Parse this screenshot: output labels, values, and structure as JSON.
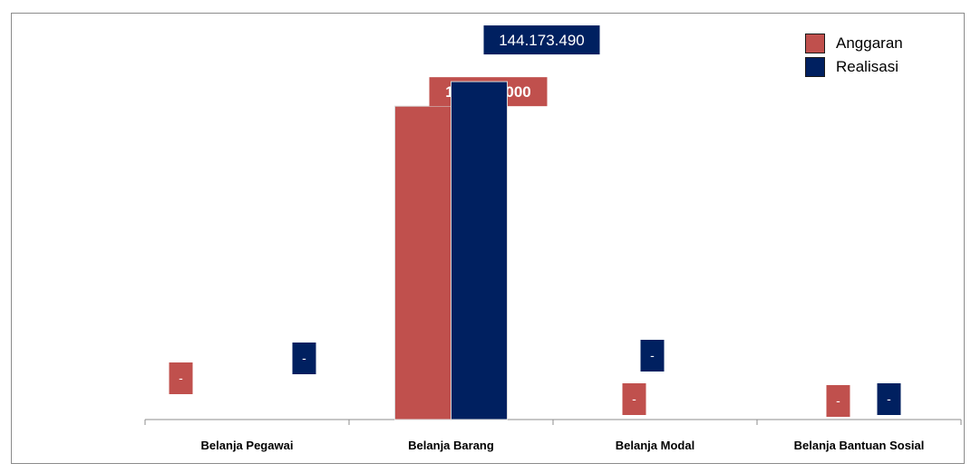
{
  "chart_data": {
    "type": "bar",
    "categories": [
      "Belanja Pegawai",
      "Belanja Barang",
      "Belanja Modal",
      "Belanja Bantuan Sosial"
    ],
    "series": [
      {
        "name": "Anggaran",
        "color": "#c0504d",
        "values": [
          0,
          133697000,
          0,
          0
        ],
        "labels": [
          "-",
          "133.697.000",
          "-",
          "-"
        ]
      },
      {
        "name": "Realisasi",
        "color": "#002060",
        "values": [
          0,
          144173490,
          0,
          0
        ],
        "labels": [
          "-",
          "144.173.490",
          "-",
          "-"
        ]
      }
    ],
    "ylim": [
      0,
      150000000
    ],
    "legend": "top-right",
    "grid": false
  }
}
